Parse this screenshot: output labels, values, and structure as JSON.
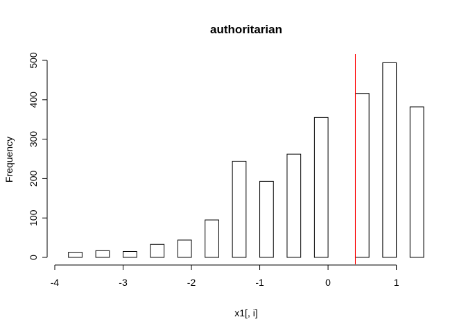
{
  "chart_data": {
    "type": "bar",
    "title": "authoritarian",
    "xlabel": "x1[, i]",
    "ylabel": "Frequency",
    "xlim": [
      -4,
      1.4
    ],
    "ylim": [
      0,
      500
    ],
    "x_ticks": [
      -4,
      -3,
      -2,
      -1,
      0,
      1
    ],
    "x_tick_labels": [
      "-4",
      "-3",
      "-2",
      "-1",
      "0",
      "1"
    ],
    "y_ticks": [
      0,
      100,
      200,
      300,
      400,
      500
    ],
    "y_tick_labels": [
      "0",
      "100",
      "200",
      "300",
      "400",
      "500"
    ],
    "bins": [
      {
        "x0": -3.8,
        "x1": -3.6,
        "count": 13
      },
      {
        "x0": -3.6,
        "x1": -3.4,
        "count": 0
      },
      {
        "x0": -3.4,
        "x1": -3.2,
        "count": 17
      },
      {
        "x0": -3.2,
        "x1": -3.0,
        "count": 0
      },
      {
        "x0": -3.0,
        "x1": -2.8,
        "count": 15
      },
      {
        "x0": -2.8,
        "x1": -2.6,
        "count": 0
      },
      {
        "x0": -2.6,
        "x1": -2.4,
        "count": 33
      },
      {
        "x0": -2.4,
        "x1": -2.2,
        "count": 0
      },
      {
        "x0": -2.2,
        "x1": -2.0,
        "count": 44
      },
      {
        "x0": -2.0,
        "x1": -1.8,
        "count": 0
      },
      {
        "x0": -1.8,
        "x1": -1.6,
        "count": 95
      },
      {
        "x0": -1.6,
        "x1": -1.4,
        "count": 0
      },
      {
        "x0": -1.4,
        "x1": -1.2,
        "count": 244
      },
      {
        "x0": -1.2,
        "x1": -1.0,
        "count": 0
      },
      {
        "x0": -1.0,
        "x1": -0.8,
        "count": 193
      },
      {
        "x0": -0.8,
        "x1": -0.6,
        "count": 0
      },
      {
        "x0": -0.6,
        "x1": -0.4,
        "count": 262
      },
      {
        "x0": -0.4,
        "x1": -0.2,
        "count": 0
      },
      {
        "x0": -0.2,
        "x1": 0.0,
        "count": 355
      },
      {
        "x0": 0.0,
        "x1": 0.2,
        "count": 0
      },
      {
        "x0": 0.2,
        "x1": 0.4,
        "count": 0
      },
      {
        "x0": 0.4,
        "x1": 0.6,
        "count": 416
      },
      {
        "x0": 0.6,
        "x1": 0.8,
        "count": 0
      },
      {
        "x0": 0.8,
        "x1": 1.0,
        "count": 494
      },
      {
        "x0": 1.0,
        "x1": 1.2,
        "count": 0
      },
      {
        "x0": 1.2,
        "x1": 1.4,
        "count": 382
      }
    ],
    "reference_line": {
      "x": 0.4,
      "color": "#ff0000"
    }
  }
}
